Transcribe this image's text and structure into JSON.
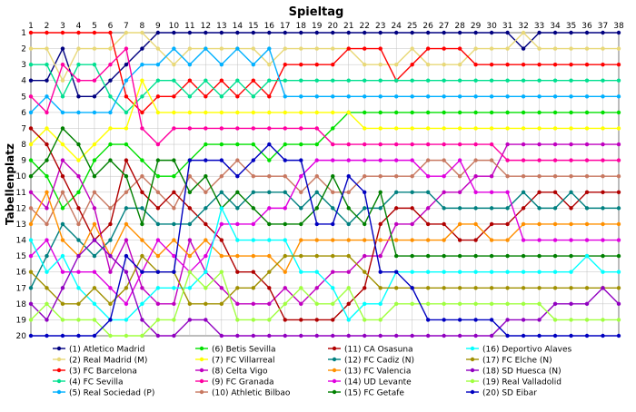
{
  "chart_data": {
    "type": "line",
    "title": "Spieltag",
    "ylabel": "Tabellenplatz",
    "x": [
      1,
      2,
      3,
      4,
      5,
      6,
      7,
      8,
      9,
      10,
      11,
      12,
      13,
      14,
      15,
      16,
      17,
      18,
      19,
      20,
      21,
      22,
      23,
      24,
      25,
      26,
      27,
      28,
      29,
      30,
      31,
      32,
      33,
      34,
      35,
      36,
      37,
      38
    ],
    "yticks": [
      1,
      2,
      3,
      4,
      5,
      6,
      7,
      8,
      9,
      10,
      11,
      12,
      13,
      14,
      15,
      16,
      17,
      18,
      19,
      20
    ],
    "ylim": [
      1,
      20
    ],
    "y_inverted": true,
    "grid": true,
    "legend_position": "bottom",
    "series": [
      {
        "name": "(1) Atletico Madrid",
        "color": "#000080",
        "values": [
          4,
          4,
          2,
          5,
          5,
          4,
          3,
          2,
          1,
          1,
          1,
          1,
          1,
          1,
          1,
          1,
          1,
          1,
          1,
          1,
          1,
          1,
          1,
          1,
          1,
          1,
          1,
          1,
          1,
          1,
          1,
          2,
          1,
          1,
          1,
          1,
          1,
          1
        ]
      },
      {
        "name": "(2) Real Madrid (M)",
        "color": "#e8d878",
        "values": [
          2,
          2,
          4,
          2,
          2,
          2,
          1,
          1,
          2,
          3,
          2,
          2,
          2,
          2,
          2,
          3,
          2,
          2,
          2,
          2,
          2,
          3,
          3,
          3,
          2,
          3,
          3,
          3,
          2,
          2,
          2,
          1,
          2,
          2,
          2,
          2,
          2,
          2
        ]
      },
      {
        "name": "(3) FC Barcelona",
        "color": "#ff0000",
        "values": [
          1,
          1,
          1,
          1,
          1,
          1,
          5,
          6,
          5,
          5,
          4,
          5,
          4,
          5,
          4,
          5,
          3,
          3,
          3,
          3,
          2,
          2,
          2,
          4,
          3,
          2,
          2,
          2,
          3,
          3,
          3,
          3,
          3,
          3,
          3,
          3,
          3,
          3
        ]
      },
      {
        "name": "(4) FC Sevilla",
        "color": "#00e090",
        "values": [
          3,
          3,
          5,
          3,
          3,
          5,
          6,
          5,
          4,
          4,
          5,
          4,
          5,
          4,
          5,
          4,
          4,
          4,
          4,
          4,
          4,
          4,
          4,
          4,
          4,
          4,
          4,
          4,
          4,
          4,
          4,
          4,
          4,
          4,
          4,
          4,
          4,
          4
        ]
      },
      {
        "name": "(5) Real Sociedad (P)",
        "color": "#00b0ff",
        "values": [
          6,
          5,
          6,
          6,
          6,
          6,
          4,
          3,
          3,
          2,
          3,
          2,
          3,
          2,
          3,
          2,
          5,
          5,
          5,
          5,
          5,
          5,
          5,
          5,
          5,
          5,
          5,
          5,
          5,
          5,
          5,
          5,
          5,
          5,
          5,
          5,
          5,
          5
        ]
      },
      {
        "name": "(6) Betis Sevilla",
        "color": "#00e000",
        "values": [
          9,
          10,
          12,
          11,
          9,
          8,
          8,
          9,
          10,
          10,
          9,
          8,
          8,
          8,
          8,
          9,
          8,
          8,
          8,
          7,
          6,
          6,
          6,
          6,
          6,
          6,
          6,
          6,
          6,
          6,
          6,
          6,
          6,
          6,
          6,
          6,
          6,
          6
        ]
      },
      {
        "name": "(7) FC Villarreal",
        "color": "#ffff00",
        "values": [
          8,
          7,
          8,
          9,
          8,
          7,
          7,
          4,
          6,
          6,
          6,
          6,
          6,
          6,
          6,
          6,
          6,
          6,
          6,
          6,
          6,
          7,
          7,
          7,
          7,
          7,
          7,
          7,
          7,
          7,
          7,
          7,
          7,
          7,
          7,
          7,
          7,
          7
        ]
      },
      {
        "name": "(8) Celta Vigo",
        "color": "#c000c0",
        "values": [
          11,
          12,
          9,
          10,
          12,
          16,
          14,
          17,
          18,
          18,
          14,
          16,
          17,
          18,
          18,
          18,
          17,
          18,
          17,
          16,
          16,
          15,
          15,
          13,
          13,
          12,
          11,
          11,
          10,
          10,
          8,
          8,
          8,
          8,
          8,
          8,
          8,
          8
        ]
      },
      {
        "name": "(9) FC Granada",
        "color": "#ff00a0",
        "values": [
          5,
          6,
          3,
          4,
          4,
          3,
          2,
          7,
          8,
          7,
          7,
          7,
          7,
          7,
          7,
          7,
          7,
          7,
          7,
          8,
          8,
          8,
          8,
          8,
          8,
          8,
          8,
          8,
          8,
          8,
          9,
          9,
          9,
          9,
          9,
          9,
          9,
          9
        ]
      },
      {
        "name": "(10) Athletic Bilbao",
        "color": "#c87860",
        "values": [
          12,
          13,
          11,
          13,
          11,
          12,
          11,
          10,
          11,
          12,
          10,
          11,
          10,
          9,
          10,
          10,
          10,
          11,
          10,
          11,
          11,
          10,
          10,
          10,
          10,
          9,
          9,
          10,
          9,
          9,
          10,
          10,
          10,
          10,
          10,
          10,
          10,
          10
        ]
      },
      {
        "name": "(11) CA Osasuna",
        "color": "#b00000",
        "values": [
          7,
          8,
          10,
          12,
          14,
          13,
          9,
          11,
          12,
          11,
          12,
          13,
          14,
          16,
          16,
          17,
          19,
          19,
          19,
          19,
          18,
          17,
          13,
          12,
          12,
          13,
          13,
          14,
          14,
          13,
          13,
          12,
          11,
          11,
          12,
          11,
          11,
          11
        ]
      },
      {
        "name": "(12) FC Cadiz (N)",
        "color": "#008080",
        "values": [
          17,
          15,
          13,
          14,
          15,
          14,
          12,
          12,
          13,
          13,
          13,
          12,
          11,
          12,
          11,
          11,
          11,
          12,
          11,
          12,
          13,
          12,
          12,
          11,
          11,
          11,
          12,
          12,
          12,
          12,
          12,
          11,
          12,
          12,
          11,
          12,
          12,
          12
        ]
      },
      {
        "name": "(13) FC Valencia",
        "color": "#ff9000",
        "values": [
          13,
          11,
          14,
          15,
          13,
          15,
          13,
          14,
          15,
          14,
          15,
          14,
          15,
          15,
          15,
          15,
          16,
          14,
          14,
          14,
          14,
          14,
          14,
          14,
          14,
          14,
          14,
          13,
          13,
          14,
          14,
          13,
          13,
          13,
          13,
          13,
          13,
          13
        ]
      },
      {
        "name": "(14) UD Levante",
        "color": "#e000e0",
        "values": [
          15,
          14,
          16,
          16,
          16,
          17,
          18,
          16,
          14,
          15,
          16,
          15,
          13,
          13,
          13,
          12,
          12,
          10,
          9,
          9,
          9,
          9,
          9,
          9,
          9,
          10,
          10,
          9,
          11,
          11,
          11,
          14,
          14,
          14,
          14,
          14,
          14,
          14
        ]
      },
      {
        "name": "(15) FC Getafe",
        "color": "#008000",
        "values": [
          10,
          9,
          7,
          8,
          10,
          9,
          10,
          13,
          9,
          9,
          11,
          10,
          12,
          11,
          12,
          13,
          13,
          13,
          12,
          10,
          12,
          13,
          11,
          15,
          15,
          15,
          15,
          15,
          15,
          15,
          15,
          15,
          15,
          15,
          15,
          15,
          15,
          15
        ]
      },
      {
        "name": "(16) Deportivo Alaves",
        "color": "#00ffff",
        "values": [
          14,
          16,
          15,
          17,
          18,
          19,
          19,
          18,
          17,
          17,
          17,
          16,
          12,
          14,
          14,
          14,
          14,
          16,
          16,
          17,
          19,
          18,
          18,
          16,
          16,
          16,
          16,
          16,
          16,
          16,
          16,
          16,
          16,
          16,
          16,
          15,
          16,
          16
        ]
      },
      {
        "name": "(17) FC Elche (N)",
        "color": "#a09000",
        "values": [
          16,
          17,
          18,
          18,
          17,
          18,
          17,
          15,
          16,
          16,
          18,
          18,
          18,
          17,
          17,
          16,
          15,
          15,
          15,
          15,
          15,
          16,
          17,
          17,
          17,
          17,
          17,
          17,
          17,
          17,
          17,
          17,
          17,
          17,
          17,
          17,
          17,
          17
        ]
      },
      {
        "name": "(18) SD Huesca (N)",
        "color": "#9000c0",
        "values": [
          18,
          19,
          17,
          15,
          14,
          15,
          16,
          19,
          20,
          20,
          19,
          19,
          20,
          20,
          20,
          20,
          20,
          20,
          20,
          20,
          20,
          20,
          20,
          20,
          20,
          20,
          20,
          20,
          20,
          20,
          19,
          19,
          19,
          18,
          18,
          18,
          17,
          18
        ]
      },
      {
        "name": "(19) Real Valladolid",
        "color": "#a0ff40",
        "values": [
          19,
          18,
          19,
          19,
          19,
          20,
          20,
          20,
          19,
          19,
          16,
          17,
          16,
          19,
          19,
          19,
          18,
          17,
          18,
          18,
          17,
          19,
          19,
          18,
          18,
          18,
          18,
          18,
          18,
          18,
          18,
          18,
          18,
          19,
          19,
          19,
          19,
          19
        ]
      },
      {
        "name": "(20) SD Eibar",
        "color": "#0000c0",
        "values": [
          20,
          20,
          20,
          20,
          20,
          19,
          15,
          16,
          16,
          16,
          9,
          9,
          9,
          10,
          9,
          8,
          9,
          9,
          13,
          13,
          10,
          11,
          16,
          16,
          17,
          19,
          19,
          19,
          19,
          19,
          20,
          20,
          20,
          20,
          20,
          20,
          20,
          20
        ]
      }
    ]
  }
}
